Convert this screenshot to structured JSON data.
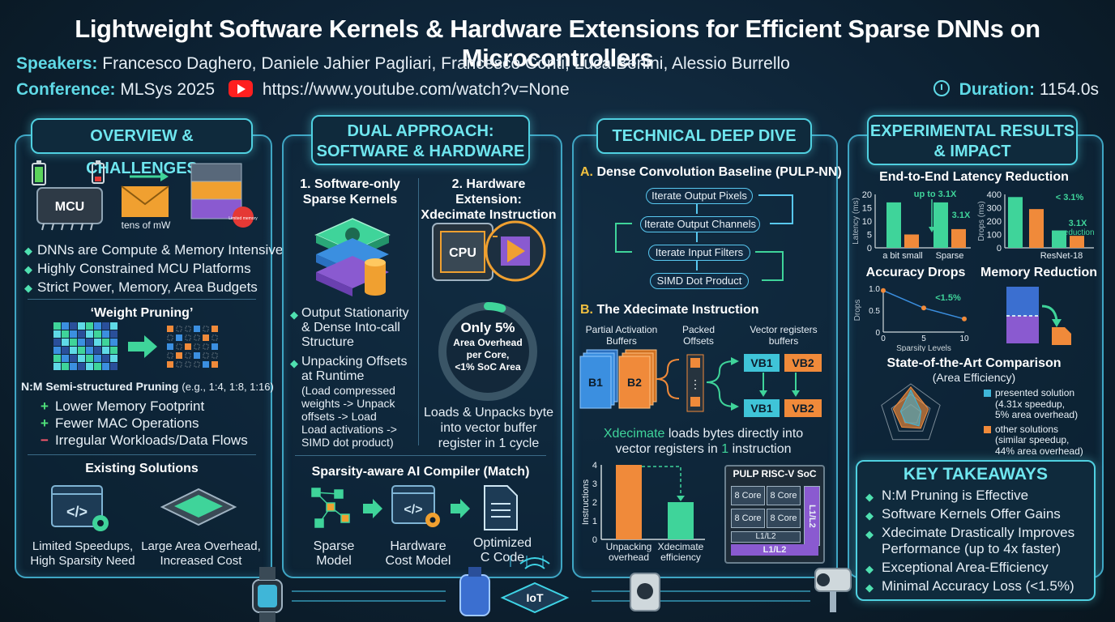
{
  "header": {
    "title": "Lightweight Software Kernels & Hardware Extensions for Efficient Sparse DNNs on Microcontrollers",
    "speakers_label": "Speakers:",
    "speakers": "Francesco Daghero, Daniele Jahier Pagliari, Francesco Conti, Luca Benini, Alessio Burrello",
    "conference_label": "Conference:",
    "conference": "MLSys 2025",
    "url": "https://www.youtube.com/watch?v=None",
    "duration_label": "Duration:",
    "duration": "1154.0s"
  },
  "overview": {
    "title": "OVERVIEW & CHALLENGES",
    "mcu_chip": "MCU",
    "tens_mw": "tens of mW",
    "limited_memory_badge": "Limited memory",
    "bullets": [
      "DNNs are Compute & Memory Intensive",
      "Highly Constrained MCU Platforms",
      "Strict Power, Memory, Area Budgets"
    ],
    "pruning_title": "‘Weight Pruning’",
    "nm_label": "N:M Semi-structured Pruning",
    "nm_eg": "(e.g., 1:4, 1:8, 1:16)",
    "pros": [
      "Lower Memory Footprint",
      "Fewer MAC Operations"
    ],
    "con": "Irregular Workloads/Data Flows",
    "existing_title": "Existing Solutions",
    "existing_left": [
      "Limited Speedups,",
      "High Sparsity Need"
    ],
    "existing_right": [
      "Large Area Overhead,",
      "Increased Cost"
    ]
  },
  "dual": {
    "title_line1": "DUAL APPROACH:",
    "title_line2": "SOFTWARE & HARDWARE",
    "sw_title_1": "1. Software-only",
    "sw_title_2": "Sparse Kernels",
    "hw_title_1": "2. Hardware Extension:",
    "hw_title_2": "Xdecimate Instruction",
    "cpu": "CPU",
    "sw_bullets": [
      [
        "Output Stationarity",
        "& Dense Into-call",
        "Structure"
      ],
      [
        "Unpacking Offsets",
        "at Runtime",
        "(Load compressed",
        "weights -> Unpack",
        "offsets -> Load",
        "Load activations ->",
        "SIMD dot product)"
      ]
    ],
    "ring_big": "Only 5%",
    "ring_lines": [
      "Area Overhead",
      "per Core,",
      "<1% SoC Area"
    ],
    "ring_pct": 5,
    "hw_desc": [
      "Loads & Unpacks byte",
      "into vector buffer",
      "register in 1 cycle"
    ],
    "compiler_title": "Sparsity-aware AI Compiler (Match)",
    "compiler_steps": [
      [
        "Sparse",
        "Model"
      ],
      [
        "Hardware",
        "Cost Model"
      ],
      [
        "Optimized",
        "C Code"
      ]
    ]
  },
  "deep": {
    "title": "TECHNICAL DEEP DIVE",
    "a_label": "A.",
    "a_title": "Dense Convolution Baseline (PULP-NN)",
    "flow": [
      "Iterate Output Pixels",
      "Iterate Output Channels",
      "Iterate Input Filters",
      "SIMD Dot Product"
    ],
    "b_label": "B.",
    "b_title": "The Xdecimate Instruction",
    "col_partial": [
      "Partial Activation",
      "Buffers"
    ],
    "col_packed": [
      "Packed",
      "Offsets"
    ],
    "col_vector": [
      "Vector registers",
      "buffers"
    ],
    "b1": "B1",
    "b2": "B2",
    "vb1": "VB1",
    "vb2": "VB2",
    "dots": "⋮",
    "xdec_word": "Xdecimate",
    "xdec_rest": "loads bytes directly into",
    "xdec_line2_pre": "vector registers in",
    "xdec_num": "1",
    "xdec_line2_post": "instruction",
    "bar_chart": {
      "ylabel": "Instructions",
      "ylim": [
        0,
        4
      ],
      "ticks": [
        "4",
        "3",
        "2",
        "1",
        "0"
      ],
      "categories": [
        [
          "Unpacking",
          "overhead"
        ],
        [
          "Xdecimate",
          "efficiency"
        ]
      ],
      "values": [
        4,
        2
      ],
      "colors": [
        "#f08a3a",
        "#3fd49a"
      ]
    },
    "soc_title": "PULP RISC-V SoC",
    "cores": [
      "8 Core",
      "8 Core",
      "8 Core",
      "8 Core"
    ],
    "l1l2": "L1/L2",
    "l1l2_side": "L1/L2",
    "l1l2_bottom": "L1/L2"
  },
  "results": {
    "title_line1": "EXPERIMENTAL RESULTS",
    "title_line2": "& IMPACT",
    "latency_title": "End-to-End Latency Reduction",
    "latency_chart": {
      "ylabel": "Latency (ms)",
      "ylim": [
        0,
        20
      ],
      "ticks": [
        "20",
        "15",
        "10",
        "5",
        "0"
      ],
      "categories": [
        "a bit small",
        "Sparse"
      ],
      "series": [
        {
          "values": [
            17,
            17
          ],
          "color": "#3fd49a"
        },
        {
          "values": [
            5,
            7
          ],
          "color": "#f08a3a"
        }
      ],
      "annotations": [
        "up to 3.1X",
        "3.1X"
      ]
    },
    "drops_chart": {
      "ylabel": "Drops (ms)",
      "ylim": [
        0,
        400
      ],
      "ticks": [
        "400",
        "300",
        "200",
        "100",
        "0"
      ],
      "category": "ResNet-18",
      "values": [
        380,
        290,
        130,
        90
      ],
      "colors": [
        "#3fd49a",
        "#f08a3a",
        "#3fd49a",
        "#f08a3a"
      ],
      "annotations": [
        "< 3.1%",
        "3.1X",
        "reduction"
      ]
    },
    "accuracy_title": "Accuracy Drops",
    "accuracy_chart": {
      "ylabel": "Drops",
      "xlabel": "Sparsity Levels",
      "ylim": [
        0,
        1.0
      ],
      "yticks": [
        "1.0",
        "0.5",
        "0"
      ],
      "xticks": [
        "0",
        "5",
        "10"
      ],
      "x": [
        0,
        5,
        10
      ],
      "y": [
        0.95,
        0.55,
        0.3
      ],
      "annotation": "<1.5%"
    },
    "memory_title": "Memory Reduction",
    "sota_title": "State-of-the-Art Comparison",
    "sota_sub": "(Area Efficiency)",
    "legend": [
      {
        "lines": [
          "presented solution",
          "(4.31x speedup,",
          "5% area overhead)"
        ],
        "color": "#3fb6d8"
      },
      {
        "lines": [
          "other solutions",
          "(similar speedup,",
          "44% area overhead)"
        ],
        "color": "#f08a3a"
      }
    ],
    "takeaways_title": "KEY TAKEAWAYS",
    "takeaways": [
      [
        "N:M Pruning is Effective"
      ],
      [
        "Software Kernels Offer Gains"
      ],
      [
        "Xdecimate Drastically Improves",
        "Performance (up to 4x faster)"
      ],
      [
        "Exceptional Area-Efficiency"
      ],
      [
        "Minimal Accuracy Loss (<1.5%)"
      ]
    ],
    "iot": "IoT"
  },
  "colors": {
    "accent": "#5fd9e6",
    "green": "#3fd49a",
    "orange": "#f08a3a",
    "purple": "#8a5ad0",
    "red": "#ff5a6e"
  }
}
